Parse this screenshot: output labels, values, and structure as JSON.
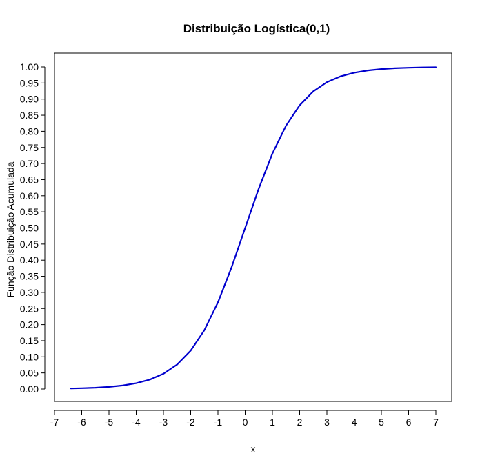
{
  "chart_data": {
    "type": "line",
    "title": "Distribuição Logística(0,1)",
    "xlabel": "x",
    "ylabel": "Função Distribuição Acumulada",
    "xlim": [
      -7,
      7
    ],
    "ylim": [
      0,
      1
    ],
    "x_ticks": [
      -7,
      -6,
      -5,
      -4,
      -3,
      -2,
      -1,
      0,
      1,
      2,
      3,
      4,
      5,
      6,
      7
    ],
    "y_ticks": [
      "0.00",
      "0.05",
      "0.10",
      "0.15",
      "0.20",
      "0.25",
      "0.30",
      "0.35",
      "0.40",
      "0.45",
      "0.50",
      "0.55",
      "0.60",
      "0.65",
      "0.70",
      "0.75",
      "0.80",
      "0.85",
      "0.90",
      "0.95",
      "1.00"
    ],
    "grid": false,
    "series": [
      {
        "color": "#0000cd",
        "x": [
          -6.4,
          -6.0,
          -5.5,
          -5.0,
          -4.5,
          -4.0,
          -3.5,
          -3.0,
          -2.5,
          -2.0,
          -1.5,
          -1.0,
          -0.5,
          0.0,
          0.5,
          1.0,
          1.5,
          2.0,
          2.5,
          3.0,
          3.5,
          4.0,
          4.5,
          5.0,
          5.5,
          6.0,
          6.5,
          7.0
        ],
        "y": [
          0.0017,
          0.0025,
          0.0041,
          0.0067,
          0.011,
          0.018,
          0.0293,
          0.0474,
          0.0759,
          0.1192,
          0.1824,
          0.2689,
          0.3775,
          0.5,
          0.6225,
          0.7311,
          0.8176,
          0.8808,
          0.9241,
          0.9526,
          0.9707,
          0.982,
          0.989,
          0.9933,
          0.9959,
          0.9975,
          0.9985,
          0.9991
        ]
      }
    ]
  }
}
